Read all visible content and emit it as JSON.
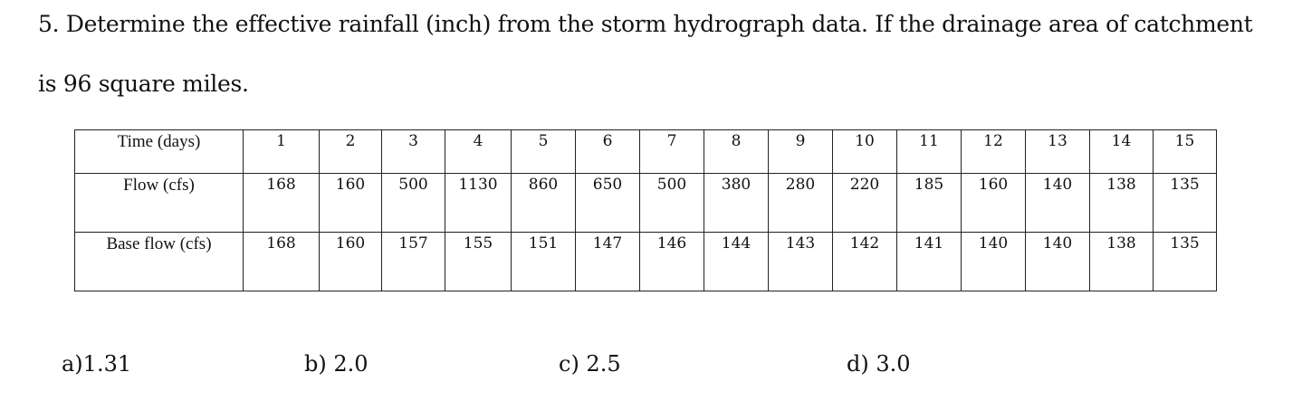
{
  "question": {
    "lines": [
      "5. Determine the effective rainfall (inch) from the storm hydrograph data. If the drainage area of catchment",
      "is 96 square miles."
    ]
  },
  "table": {
    "rows": [
      [
        "Time (days)",
        1,
        2,
        3,
        4,
        5,
        6,
        7,
        8,
        9,
        10,
        11,
        12,
        13,
        14,
        15
      ],
      [
        "Flow (cfs)",
        168,
        160,
        500,
        1130,
        860,
        650,
        500,
        380,
        280,
        220,
        185,
        160,
        140,
        138,
        135
      ],
      [
        "Base flow (cfs)",
        168,
        160,
        157,
        155,
        151,
        147,
        146,
        144,
        143,
        142,
        141,
        140,
        140,
        138,
        135
      ]
    ]
  },
  "options": [
    "a)1.31",
    "b) 2.0",
    "c) 2.5",
    "d) 3.0"
  ]
}
